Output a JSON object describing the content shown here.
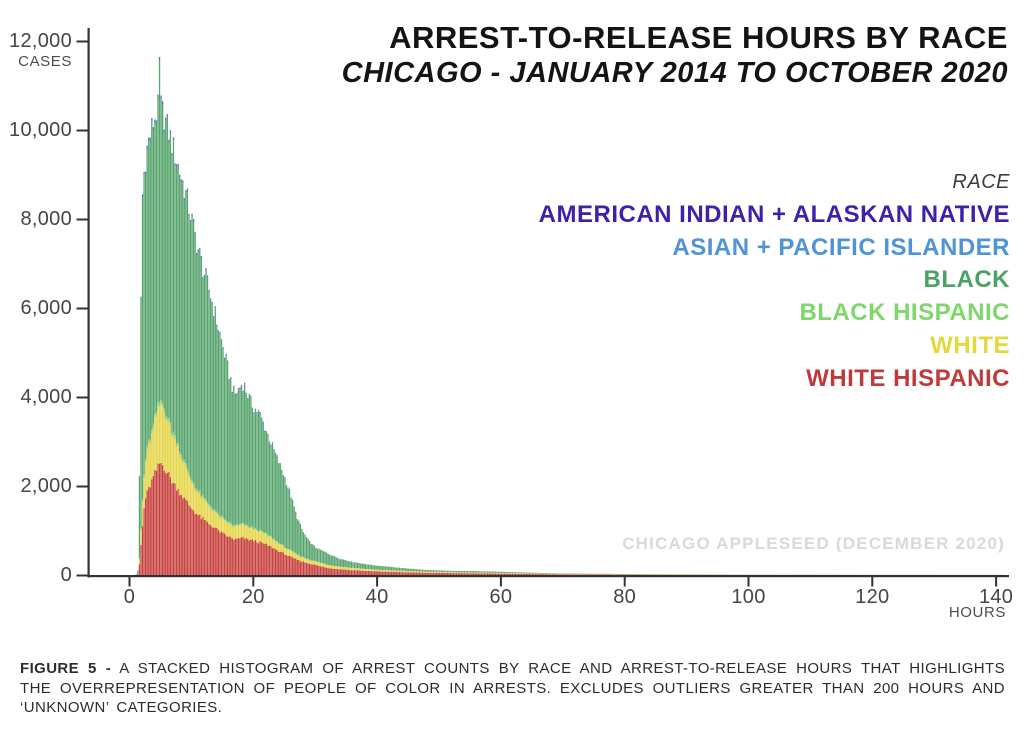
{
  "header": {
    "title": "ARREST-TO-RELEASE HOURS BY RACE",
    "subtitle": "CHICAGO - JANUARY 2014 TO OCTOBER 2020"
  },
  "legend": {
    "label": "RACE",
    "entries": [
      {
        "label": "AMERICAN INDIAN + ALASKAN NATIVE",
        "color": "#3f20ad"
      },
      {
        "label": "ASIAN + PACIFIC ISLANDER",
        "color": "#4e94d7"
      },
      {
        "label": "BLACK",
        "color": "#4aa263"
      },
      {
        "label": "BLACK HISPANIC",
        "color": "#7fd66b"
      },
      {
        "label": "WHITE",
        "color": "#e3d83e"
      },
      {
        "label": "WHITE HISPANIC",
        "color": "#c0393b"
      }
    ]
  },
  "watermark": {
    "text": "CHICAGO APPLESEED (DECEMBER 2020)"
  },
  "caption": {
    "label": "FIGURE 5 -",
    "text": "A STACKED HISTOGRAM OF ARREST COUNTS BY RACE AND ARREST-TO-RELEASE HOURS THAT HIGHLIGHTS THE OVERREPRESENTATION OF PEOPLE OF COLOR IN ARRESTS. EXCLUDES OUTLIERS GREATER THAN 200 HOURS AND ‘UNKNOWN’ CATEGORIES."
  },
  "chart_data": {
    "type": "bar",
    "variant": "stacked-histogram",
    "title": "ARREST-TO-RELEASE HOURS BY RACE",
    "subtitle": "CHICAGO - JANUARY 2014 TO OCTOBER 2020",
    "xlabel": "HOURS",
    "ylabel": "CASES",
    "x_ticks": [
      0,
      20,
      40,
      60,
      80,
      100,
      120,
      140
    ],
    "y_ticks": [
      0,
      2000,
      4000,
      6000,
      8000,
      10000,
      12000
    ],
    "xlim": [
      0,
      141.5
    ],
    "ylim": [
      0,
      12000
    ],
    "grid": false,
    "legend_position": "upper-right",
    "bin_width_hours": 0.25,
    "series_bottom_to_top": [
      {
        "key": "white_hispanic",
        "label": "WHITE HISPANIC",
        "bar_color": "#c7413e"
      },
      {
        "key": "white",
        "label": "WHITE",
        "bar_color": "#e5d54a"
      },
      {
        "key": "black_hispanic",
        "label": "BLACK HISPANIC",
        "bar_color": "#89ce75"
      },
      {
        "key": "black",
        "label": "BLACK",
        "bar_color": "#57a46c",
        "derived": "total_minus_other_series"
      },
      {
        "key": "asian_pacific_islander",
        "label": "ASIAN + PACIFIC ISLANDER",
        "bar_color": "#4b7cbe"
      },
      {
        "key": "american_indian_alaskan_native",
        "label": "AMERICAN INDIAN + ALASKAN NATIVE",
        "bar_color": "#4630a5"
      }
    ],
    "anchor_hours": [
      0,
      1,
      1.5,
      2,
      2.5,
      3,
      4,
      4.5,
      5,
      6,
      7,
      8,
      9,
      10,
      11,
      12,
      13,
      14,
      15,
      16,
      17,
      17.5,
      18,
      18.5,
      19,
      20,
      21,
      22,
      23,
      24,
      25,
      26,
      27,
      28,
      29,
      30,
      32,
      34,
      36,
      38,
      40,
      44,
      48,
      52,
      56,
      60,
      70,
      80,
      90,
      100,
      110,
      120,
      130,
      140
    ],
    "anchors": {
      "total": [
        0,
        0,
        150,
        8300,
        9300,
        9700,
        10250,
        10450,
        10600,
        10150,
        9650,
        9150,
        8650,
        8050,
        7400,
        6850,
        6365,
        5800,
        5200,
        4600,
        4050,
        4150,
        4280,
        4310,
        4100,
        3800,
        3650,
        3300,
        2950,
        2600,
        2250,
        1850,
        1350,
        1000,
        780,
        640,
        500,
        380,
        310,
        260,
        225,
        170,
        125,
        105,
        100,
        85,
        45,
        35,
        27,
        22,
        19,
        17,
        15,
        14
      ],
      "white_hispanic": [
        0,
        0,
        30,
        900,
        1700,
        1900,
        2250,
        2400,
        2550,
        2350,
        2100,
        1900,
        1700,
        1520,
        1370,
        1250,
        1150,
        1050,
        950,
        870,
        810,
        820,
        840,
        835,
        815,
        790,
        750,
        700,
        640,
        560,
        490,
        420,
        360,
        310,
        270,
        240,
        170,
        140,
        120,
        105,
        92,
        75,
        62,
        55,
        48,
        42,
        26,
        20,
        15,
        12,
        10,
        9,
        8,
        7
      ],
      "white": [
        0,
        0,
        20,
        450,
        800,
        950,
        1150,
        1280,
        1380,
        1230,
        1060,
        930,
        750,
        600,
        520,
        450,
        390,
        340,
        310,
        290,
        280,
        285,
        290,
        285,
        275,
        260,
        240,
        220,
        195,
        170,
        150,
        130,
        110,
        95,
        85,
        78,
        65,
        55,
        47,
        40,
        35,
        28,
        22,
        18,
        15,
        12,
        8,
        6,
        5,
        4,
        3,
        3,
        2,
        2
      ],
      "black_hispanic": [
        0,
        0,
        5,
        60,
        70,
        75,
        80,
        85,
        88,
        82,
        76,
        70,
        65,
        60,
        55,
        50,
        46,
        42,
        39,
        35,
        31,
        32,
        33,
        32,
        31,
        29,
        27,
        25,
        22,
        20,
        18,
        15,
        13,
        11,
        9,
        8,
        7,
        6,
        5,
        4,
        4,
        3,
        3,
        2,
        2,
        2,
        1,
        1,
        1,
        1,
        0,
        0,
        0,
        0
      ],
      "asian_pacific_islander": [
        0,
        0,
        4,
        50,
        55,
        58,
        62,
        66,
        70,
        64,
        60,
        56,
        52,
        48,
        44,
        40,
        37,
        33,
        30,
        27,
        24,
        24,
        25,
        25,
        24,
        22,
        21,
        19,
        17,
        15,
        13,
        11,
        8,
        6,
        5,
        4,
        3,
        3,
        2,
        2,
        2,
        1,
        1,
        1,
        1,
        1,
        0,
        0,
        0,
        0,
        0,
        0,
        0,
        0
      ],
      "american_indian_alaskan_native": [
        0,
        0,
        1,
        8,
        9,
        9,
        10,
        10,
        11,
        10,
        9,
        9,
        8,
        8,
        7,
        7,
        6,
        6,
        5,
        5,
        4,
        4,
        4,
        4,
        4,
        4,
        3,
        3,
        3,
        2,
        2,
        2,
        1,
        1,
        1,
        1,
        1,
        1,
        0,
        0,
        0,
        0,
        0,
        0,
        0,
        0,
        0,
        0,
        0,
        0,
        0,
        0,
        0,
        0
      ]
    },
    "spike": {
      "hour": 4.9,
      "total_cases": 11650
    }
  }
}
